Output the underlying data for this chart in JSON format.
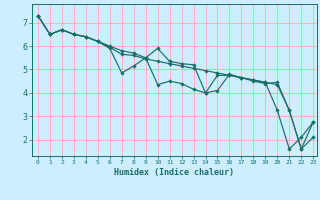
{
  "xlabel": "Humidex (Indice chaleur)",
  "bg_color": "#cceeff",
  "grid_color": "#ffaaaa",
  "line_color": "#1a6e6a",
  "xlim": [
    -0.5,
    23.3
  ],
  "ylim": [
    1.3,
    7.8
  ],
  "xticks": [
    0,
    1,
    2,
    3,
    4,
    5,
    6,
    7,
    8,
    9,
    10,
    11,
    12,
    13,
    14,
    15,
    16,
    17,
    18,
    19,
    20,
    21,
    22,
    23
  ],
  "yticks": [
    2,
    3,
    4,
    5,
    6,
    7
  ],
  "line1_x": [
    0,
    1,
    2,
    3,
    4,
    5,
    6,
    7,
    8,
    9,
    10,
    11,
    12,
    13,
    14,
    15,
    16,
    17,
    18,
    19,
    20,
    21,
    22,
    23
  ],
  "line1_y": [
    7.3,
    6.5,
    6.7,
    6.5,
    6.4,
    6.2,
    6.0,
    5.8,
    5.7,
    5.5,
    4.35,
    4.5,
    4.4,
    4.15,
    4.0,
    4.1,
    4.8,
    4.65,
    4.55,
    4.45,
    3.25,
    1.6,
    2.1,
    2.75
  ],
  "line2_x": [
    0,
    1,
    2,
    3,
    4,
    5,
    6,
    7,
    8,
    9,
    10,
    11,
    12,
    13,
    14,
    15,
    16,
    17,
    18,
    19,
    20,
    21,
    22,
    23
  ],
  "line2_y": [
    7.3,
    6.5,
    6.7,
    6.5,
    6.4,
    6.2,
    5.9,
    4.85,
    5.15,
    5.5,
    5.9,
    5.35,
    5.25,
    5.2,
    4.0,
    4.75,
    4.75,
    4.65,
    4.5,
    4.4,
    4.45,
    3.25,
    1.6,
    2.1
  ],
  "line3_x": [
    0,
    1,
    2,
    3,
    4,
    5,
    6,
    7,
    8,
    9,
    10,
    11,
    12,
    13,
    14,
    15,
    16,
    17,
    18,
    19,
    20,
    21,
    22,
    23
  ],
  "line3_y": [
    7.3,
    6.5,
    6.7,
    6.5,
    6.4,
    6.2,
    5.95,
    5.65,
    5.6,
    5.45,
    5.35,
    5.25,
    5.15,
    5.05,
    4.95,
    4.85,
    4.75,
    4.65,
    4.55,
    4.45,
    4.35,
    3.25,
    1.6,
    2.75
  ]
}
